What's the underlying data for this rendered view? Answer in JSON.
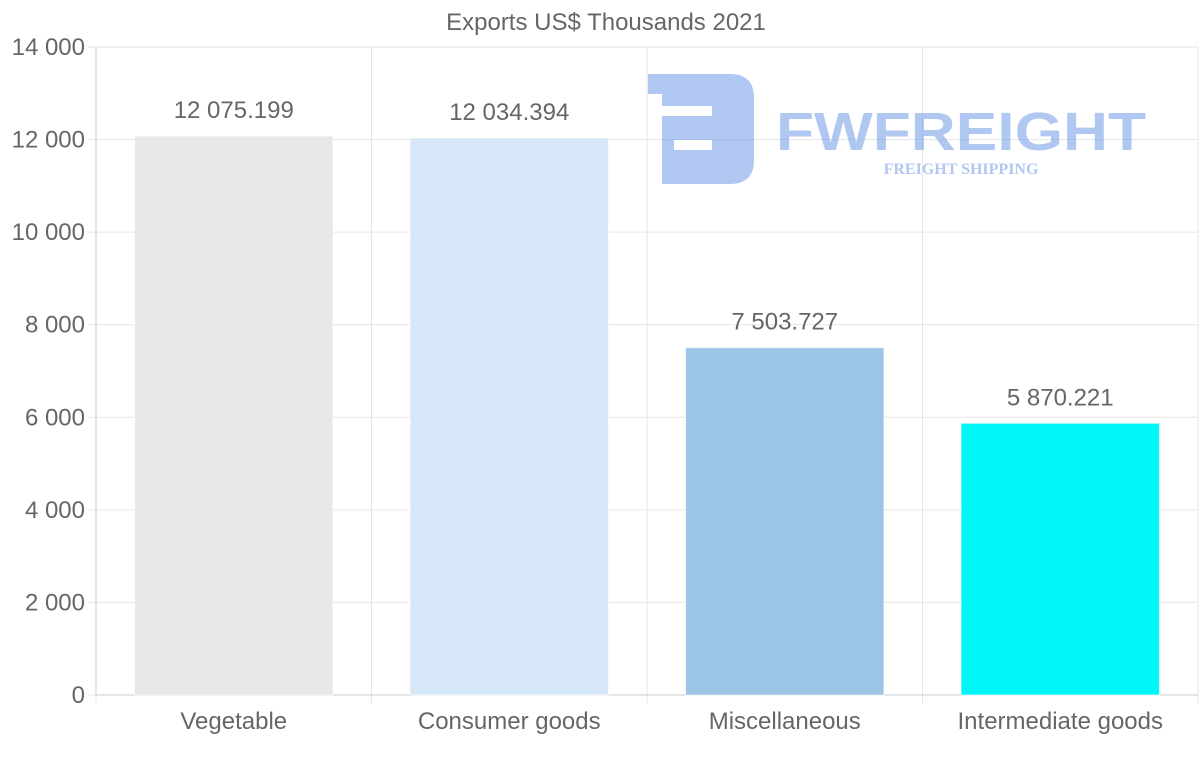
{
  "chart_data": {
    "type": "bar",
    "title": "Exports US$ Thousands 2021",
    "categories": [
      "Vegetable",
      "Consumer goods",
      "Miscellaneous",
      "Intermediate goods"
    ],
    "values": [
      12075.199,
      12034.394,
      7503.727,
      5870.221
    ],
    "value_labels": [
      "12 075.199",
      "12 034.394",
      "7 503.727",
      "5 870.221"
    ],
    "colors": [
      "#e8e8e8",
      "#d6e7f8",
      "#9cc4e6",
      "#00f7f7"
    ],
    "yticks": [
      0,
      2000,
      4000,
      6000,
      8000,
      10000,
      12000,
      14000
    ],
    "ytick_labels": [
      "0",
      "2 000",
      "4 000",
      "6 000",
      "8 000",
      "10 000",
      "12 000",
      "14 000"
    ],
    "ylim": [
      0,
      14000
    ],
    "xlabel": "",
    "ylabel": "",
    "grid": true
  },
  "watermark": {
    "brand": "FWFREIGHT",
    "tagline": "FREIGHT SHIPPING",
    "color": "#6f9ae6"
  }
}
